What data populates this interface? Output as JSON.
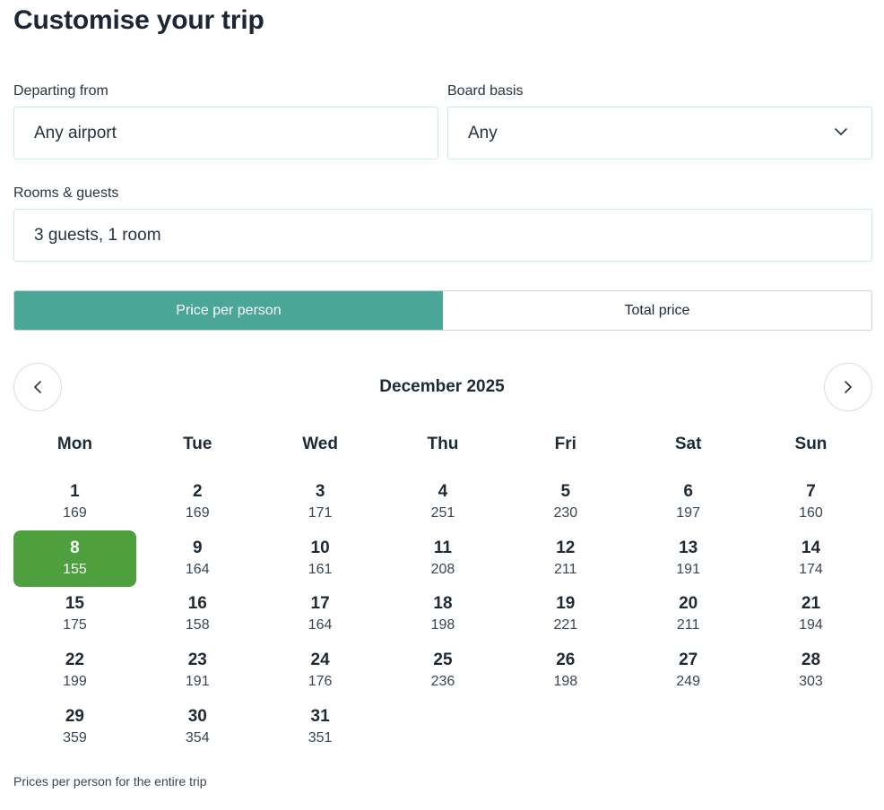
{
  "header": {
    "title": "Customise your trip"
  },
  "form": {
    "departing": {
      "label": "Departing from",
      "value": "Any airport"
    },
    "board": {
      "label": "Board basis",
      "value": "Any"
    },
    "rooms": {
      "label": "Rooms & guests",
      "value": "3 guests, 1 room"
    }
  },
  "price_toggle": {
    "options": [
      "Price per person",
      "Total price"
    ],
    "active": 0,
    "active_color": "#4aa697"
  },
  "calendar": {
    "month": "December 2025",
    "weekdays": [
      "Mon",
      "Tue",
      "Wed",
      "Thu",
      "Fri",
      "Sat",
      "Sun"
    ],
    "first_weekday_index": 0,
    "selected_day": 8,
    "selected_color": "#4e9f3d",
    "days": [
      {
        "day": "1",
        "price": "169"
      },
      {
        "day": "2",
        "price": "169"
      },
      {
        "day": "3",
        "price": "171"
      },
      {
        "day": "4",
        "price": "251"
      },
      {
        "day": "5",
        "price": "230"
      },
      {
        "day": "6",
        "price": "197"
      },
      {
        "day": "7",
        "price": "160"
      },
      {
        "day": "8",
        "price": "155"
      },
      {
        "day": "9",
        "price": "164"
      },
      {
        "day": "10",
        "price": "161"
      },
      {
        "day": "11",
        "price": "208"
      },
      {
        "day": "12",
        "price": "211"
      },
      {
        "day": "13",
        "price": "191"
      },
      {
        "day": "14",
        "price": "174"
      },
      {
        "day": "15",
        "price": "175"
      },
      {
        "day": "16",
        "price": "158"
      },
      {
        "day": "17",
        "price": "164"
      },
      {
        "day": "18",
        "price": "198"
      },
      {
        "day": "19",
        "price": "221"
      },
      {
        "day": "20",
        "price": "211"
      },
      {
        "day": "21",
        "price": "194"
      },
      {
        "day": "22",
        "price": "199"
      },
      {
        "day": "23",
        "price": "191"
      },
      {
        "day": "24",
        "price": "176"
      },
      {
        "day": "25",
        "price": "236"
      },
      {
        "day": "26",
        "price": "198"
      },
      {
        "day": "27",
        "price": "249"
      },
      {
        "day": "28",
        "price": "303"
      },
      {
        "day": "29",
        "price": "359"
      },
      {
        "day": "30",
        "price": "354"
      },
      {
        "day": "31",
        "price": "351"
      }
    ]
  },
  "footnote": "Prices per person for the entire trip",
  "icons": {
    "prev": "chevron-left-icon",
    "next": "chevron-right-icon",
    "dropdown": "chevron-down-icon"
  }
}
